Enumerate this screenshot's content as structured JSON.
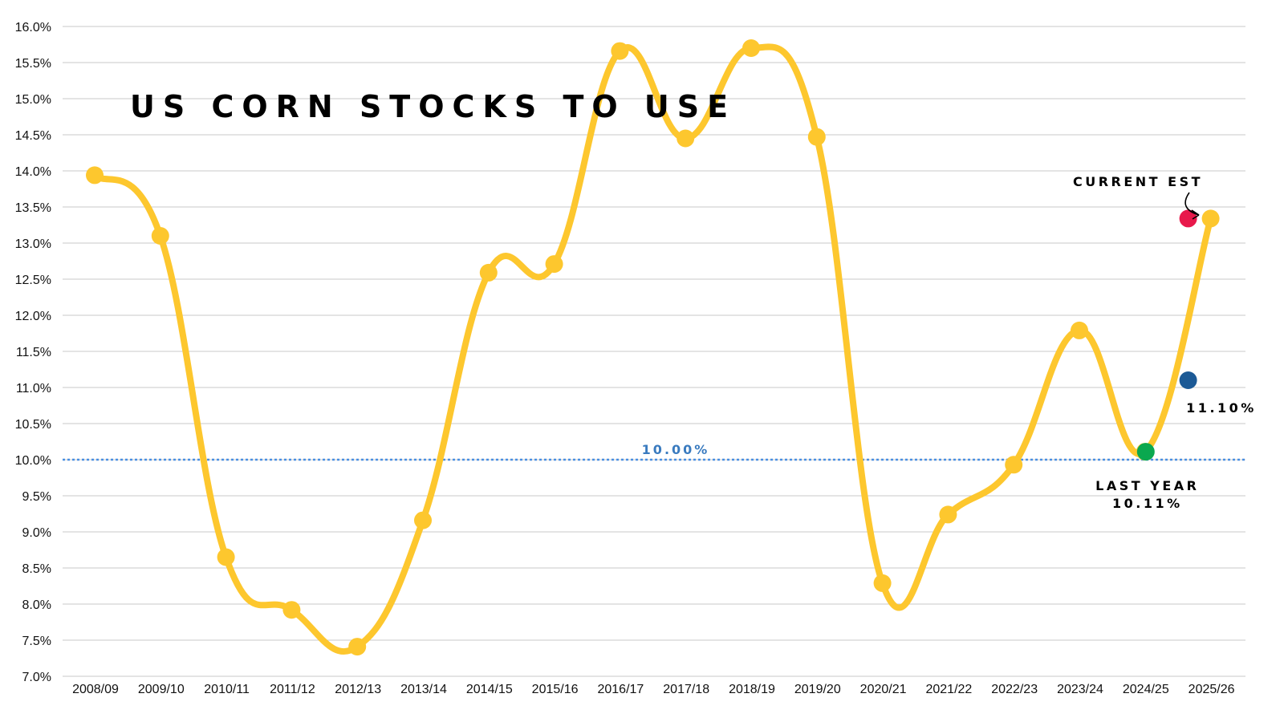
{
  "chart_data": {
    "type": "line",
    "title": "US CORN STOCKS TO USE",
    "xlabel": "",
    "ylabel": "",
    "ylim": [
      7.0,
      16.0
    ],
    "y_ticks": [
      "7.0%",
      "7.5%",
      "8.0%",
      "8.5%",
      "9.0%",
      "9.5%",
      "10.0%",
      "10.5%",
      "11.0%",
      "11.5%",
      "12.0%",
      "12.5%",
      "13.0%",
      "13.5%",
      "14.0%",
      "14.5%",
      "15.0%",
      "15.5%",
      "16.0%"
    ],
    "grid": "horizontal",
    "categories": [
      "2008/09",
      "2009/10",
      "2010/11",
      "2011/12",
      "2012/13",
      "2013/14",
      "2014/15",
      "2015/16",
      "2016/17",
      "2017/18",
      "2018/19",
      "2019/20",
      "2020/21",
      "2021/22",
      "2022/23",
      "2023/24",
      "2024/25",
      "2025/26"
    ],
    "series": [
      {
        "values": [
          13.94,
          13.1,
          8.65,
          7.92,
          7.41,
          9.16,
          12.59,
          12.71,
          15.66,
          14.45,
          15.7,
          14.47,
          8.29,
          9.24,
          9.93,
          11.79,
          10.11,
          13.34
        ],
        "color": "#fdc72e"
      }
    ],
    "reference_line": {
      "value": 10.0,
      "label": "10.00%",
      "color": "#4a90e2"
    },
    "highlights": [
      {
        "category": "2024/25",
        "value": 10.11,
        "color": "#0aa84f",
        "label_lines": [
          "LAST YEAR",
          "10.11%"
        ]
      },
      {
        "category": "2025/26",
        "value": 13.34,
        "color": "#e8194b",
        "label_lines": [
          "CURRENT EST"
        ]
      },
      {
        "category": "2025/26",
        "value": 11.1,
        "color": "#1c5a96",
        "label_lines": [
          "11.10%"
        ]
      }
    ]
  }
}
